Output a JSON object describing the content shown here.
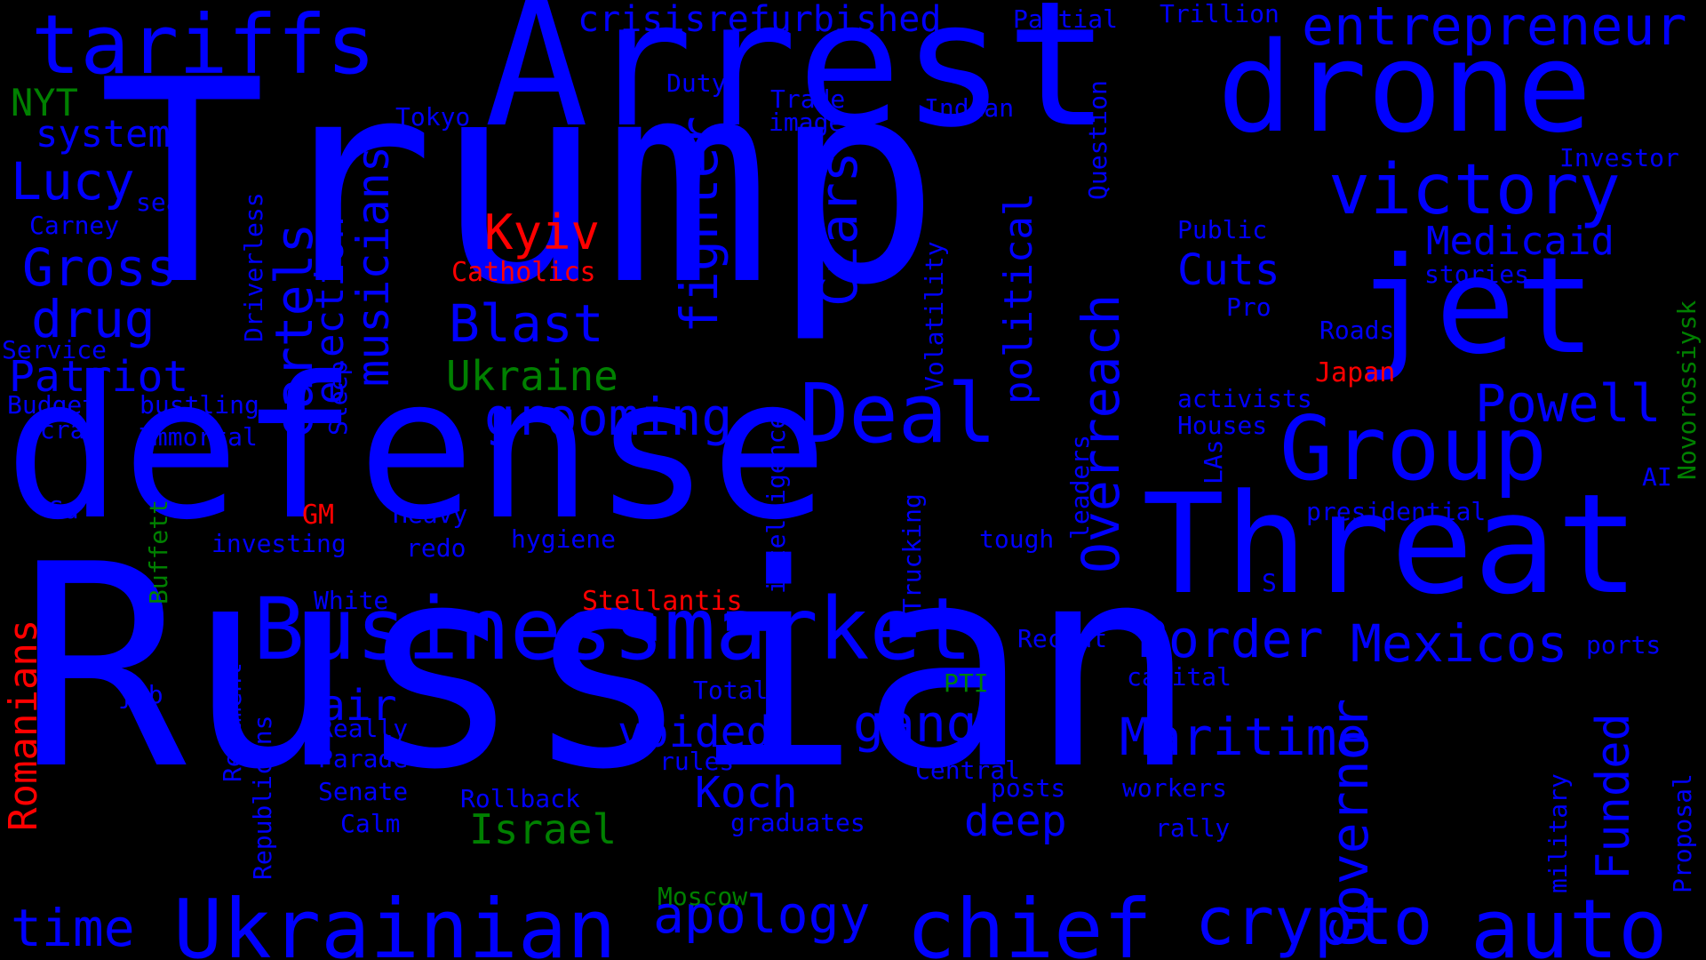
{
  "colors": {
    "blue": "#0000ff",
    "red": "#ff0000",
    "green": "#008000",
    "background": "#000000"
  },
  "words": [
    {
      "text": "Russian",
      "color": "blue"
    },
    {
      "text": "Trump",
      "color": "blue"
    },
    {
      "text": "defense",
      "color": "blue"
    },
    {
      "text": "Arrest",
      "color": "blue"
    },
    {
      "text": "drone",
      "color": "blue"
    },
    {
      "text": "Threat",
      "color": "blue"
    },
    {
      "text": "jet",
      "color": "blue"
    },
    {
      "text": "Group",
      "color": "blue"
    },
    {
      "text": "tariffs",
      "color": "blue"
    },
    {
      "text": "victory",
      "color": "blue"
    },
    {
      "text": "Businessmarket",
      "color": "blue"
    },
    {
      "text": "Ukrainian",
      "color": "blue"
    },
    {
      "text": "chief",
      "color": "blue"
    },
    {
      "text": "auto",
      "color": "blue"
    },
    {
      "text": "crypto",
      "color": "blue"
    },
    {
      "text": "Deal",
      "color": "blue"
    },
    {
      "text": "entrepreneur",
      "color": "blue"
    },
    {
      "text": "Mexicos",
      "color": "blue"
    },
    {
      "text": "Maritime",
      "color": "blue"
    },
    {
      "text": "Border",
      "color": "blue"
    },
    {
      "text": "Powell",
      "color": "blue"
    },
    {
      "text": "Medicaid",
      "color": "blue"
    },
    {
      "text": "crisisrefurbished",
      "color": "blue"
    },
    {
      "text": "Gross",
      "color": "blue"
    },
    {
      "text": "drug",
      "color": "blue"
    },
    {
      "text": "Lucy",
      "color": "blue"
    },
    {
      "text": "Blast",
      "color": "blue"
    },
    {
      "text": "grooming",
      "color": "blue"
    },
    {
      "text": "gangs",
      "color": "blue"
    },
    {
      "text": "apology",
      "color": "blue"
    },
    {
      "text": "time",
      "color": "blue"
    },
    {
      "text": "Koch",
      "color": "blue"
    },
    {
      "text": "voided",
      "color": "blue"
    },
    {
      "text": "deep",
      "color": "blue"
    },
    {
      "text": "air",
      "color": "blue"
    },
    {
      "text": "Cuts",
      "color": "blue"
    },
    {
      "text": "Patriot",
      "color": "blue"
    },
    {
      "text": "system",
      "color": "blue"
    },
    {
      "text": "Kyiv",
      "color": "red"
    },
    {
      "text": "Catholics",
      "color": "red"
    },
    {
      "text": "Japan",
      "color": "red"
    },
    {
      "text": "GM",
      "color": "red"
    },
    {
      "text": "Stellantis",
      "color": "red"
    },
    {
      "text": "Romanians",
      "color": "red"
    },
    {
      "text": "NYT",
      "color": "green"
    },
    {
      "text": "Ukraine",
      "color": "green"
    },
    {
      "text": "Israel",
      "color": "green"
    },
    {
      "text": "Moscow",
      "color": "green"
    },
    {
      "text": "PTI",
      "color": "green"
    },
    {
      "text": "Buffett",
      "color": "green"
    },
    {
      "text": "Novorossiysk",
      "color": "green"
    },
    {
      "text": "cartels",
      "color": "blue"
    },
    {
      "text": "election",
      "color": "blue"
    },
    {
      "text": "musicians",
      "color": "blue"
    },
    {
      "text": "fighter",
      "color": "blue"
    },
    {
      "text": "Czars",
      "color": "blue"
    },
    {
      "text": "Overreach",
      "color": "blue"
    },
    {
      "text": "political",
      "color": "blue"
    },
    {
      "text": "Governor",
      "color": "blue"
    },
    {
      "text": "Funded",
      "color": "blue"
    },
    {
      "text": "Partial",
      "color": "blue"
    },
    {
      "text": "Trillion",
      "color": "blue"
    },
    {
      "text": "Duty",
      "color": "blue"
    },
    {
      "text": "Trade",
      "color": "blue"
    },
    {
      "text": "image",
      "color": "blue"
    },
    {
      "text": "Tokyo",
      "color": "blue"
    },
    {
      "text": "Indian",
      "color": "blue"
    },
    {
      "text": "Investor",
      "color": "blue"
    },
    {
      "text": "Public",
      "color": "blue"
    },
    {
      "text": "stories",
      "color": "blue"
    },
    {
      "text": "Pro",
      "color": "blue"
    },
    {
      "text": "Roads",
      "color": "blue"
    },
    {
      "text": "activists",
      "color": "blue"
    },
    {
      "text": "Houses",
      "color": "blue"
    },
    {
      "text": "AI",
      "color": "blue"
    },
    {
      "text": "presidential",
      "color": "blue"
    },
    {
      "text": "S",
      "color": "blue"
    },
    {
      "text": "ports",
      "color": "blue"
    },
    {
      "text": "capital",
      "color": "blue"
    },
    {
      "text": "Recent",
      "color": "blue"
    },
    {
      "text": "workers",
      "color": "blue"
    },
    {
      "text": "rally",
      "color": "blue"
    },
    {
      "text": "posts",
      "color": "blue"
    },
    {
      "text": "Central",
      "color": "blue"
    },
    {
      "text": "graduates",
      "color": "blue"
    },
    {
      "text": "Rollback",
      "color": "blue"
    },
    {
      "text": "rules",
      "color": "blue"
    },
    {
      "text": "Total",
      "color": "blue"
    },
    {
      "text": "tough",
      "color": "blue"
    },
    {
      "text": "hygiene",
      "color": "blue"
    },
    {
      "text": "redo",
      "color": "blue"
    },
    {
      "text": "Heavy",
      "color": "blue"
    },
    {
      "text": "investing",
      "color": "blue"
    },
    {
      "text": "White",
      "color": "blue"
    },
    {
      "text": "Really",
      "color": "blue"
    },
    {
      "text": "Parade",
      "color": "blue"
    },
    {
      "text": "Senate",
      "color": "blue"
    },
    {
      "text": "Calm",
      "color": "blue"
    },
    {
      "text": "job",
      "color": "blue"
    },
    {
      "text": "Su",
      "color": "blue"
    },
    {
      "text": "Scrap",
      "color": "blue"
    },
    {
      "text": "Budget",
      "color": "blue"
    },
    {
      "text": "bustling",
      "color": "blue"
    },
    {
      "text": "Immortal",
      "color": "blue"
    },
    {
      "text": "Service",
      "color": "blue"
    },
    {
      "text": "Carney",
      "color": "blue"
    },
    {
      "text": "sea",
      "color": "blue"
    },
    {
      "text": "Driverless",
      "color": "blue"
    },
    {
      "text": "Sleep",
      "color": "blue"
    },
    {
      "text": "Question",
      "color": "blue"
    },
    {
      "text": "Volatility",
      "color": "blue"
    },
    {
      "text": "intelligence",
      "color": "blue"
    },
    {
      "text": "Trucking",
      "color": "blue"
    },
    {
      "text": "leaders",
      "color": "blue"
    },
    {
      "text": "LAs",
      "color": "blue"
    },
    {
      "text": "Regiment",
      "color": "blue"
    },
    {
      "text": "Republicans",
      "color": "blue"
    },
    {
      "text": "military",
      "color": "blue"
    },
    {
      "text": "Proposal",
      "color": "blue"
    }
  ]
}
